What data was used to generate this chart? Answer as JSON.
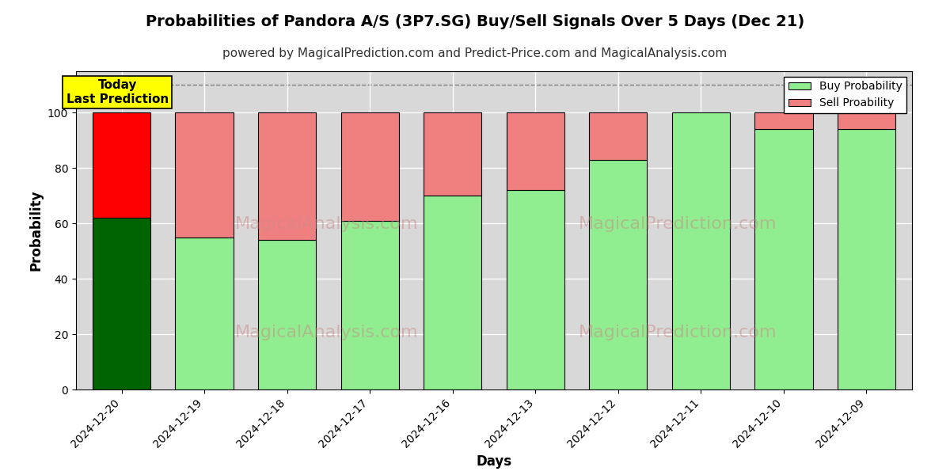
{
  "title": "Probabilities of Pandora A/S (3P7.SG) Buy/Sell Signals Over 5 Days (Dec 21)",
  "subtitle": "powered by MagicalPrediction.com and Predict-Price.com and MagicalAnalysis.com",
  "xlabel": "Days",
  "ylabel": "Probability",
  "dates": [
    "2024-12-20",
    "2024-12-19",
    "2024-12-18",
    "2024-12-17",
    "2024-12-16",
    "2024-12-13",
    "2024-12-12",
    "2024-12-11",
    "2024-12-10",
    "2024-12-09"
  ],
  "buy_values": [
    62,
    55,
    54,
    61,
    70,
    72,
    83,
    100,
    94,
    94
  ],
  "sell_values": [
    38,
    45,
    46,
    39,
    30,
    28,
    17,
    0,
    6,
    6
  ],
  "today_index": 0,
  "buy_color_today": "#006400",
  "sell_color_today": "#FF0000",
  "buy_color_normal": "#90EE90",
  "sell_color_normal": "#F08080",
  "bar_edge_color": "#000000",
  "bar_edge_width": 0.8,
  "ylim": [
    0,
    115
  ],
  "yticks": [
    0,
    20,
    40,
    60,
    80,
    100
  ],
  "grid_color": "#FFFFFF",
  "bg_color": "#D8D8D8",
  "dashed_line_y": 110,
  "legend_buy_label": "Buy Probability",
  "legend_sell_label": "Sell Proability",
  "annotation_text": "Today\nLast Prediction",
  "annotation_bg": "#FFFF00",
  "title_fontsize": 14,
  "subtitle_fontsize": 11,
  "axis_label_fontsize": 12,
  "tick_fontsize": 10,
  "bar_width": 0.7
}
